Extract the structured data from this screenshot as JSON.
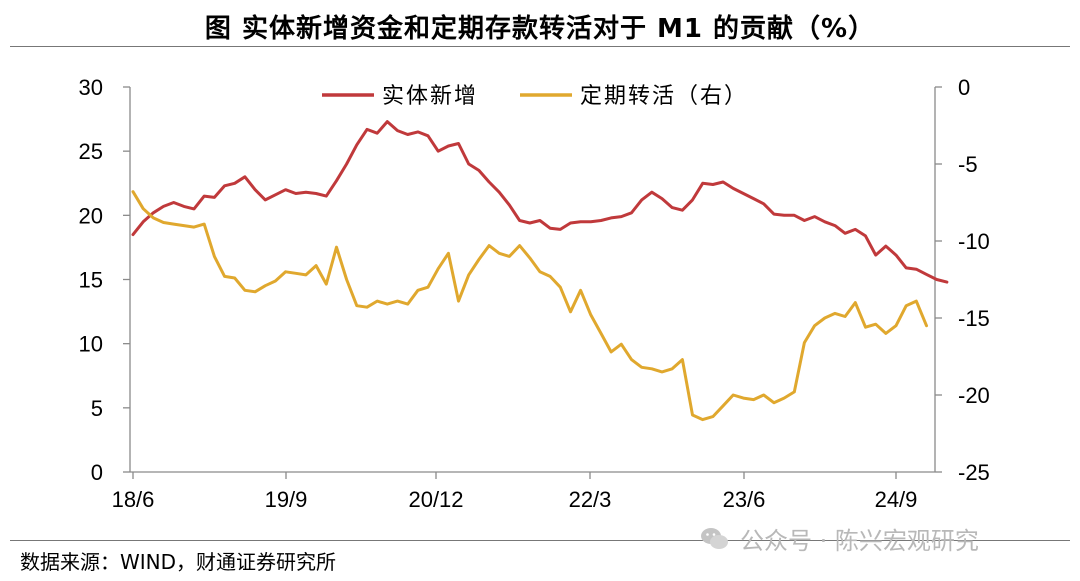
{
  "title": "图  实体新增资金和定期存款转活对于 M1 的贡献（%）",
  "source": "数据来源：WIND，财通证券研究所",
  "watermark": "公众号 · 陈兴宏观研究",
  "watermark_icon": "wechat-icon",
  "chart_data": {
    "type": "line",
    "title": "图  实体新增资金和定期存款转活对于 M1 的贡献（%）",
    "xlabel": "",
    "ylabel": "",
    "x_ticks": [
      "18/6",
      "19/9",
      "20/12",
      "22/3",
      "23/6",
      "24/9"
    ],
    "y_left": {
      "lim": [
        0,
        30
      ],
      "ticks": [
        0,
        5,
        10,
        15,
        20,
        25,
        30
      ]
    },
    "y_right": {
      "lim": [
        -25,
        0
      ],
      "ticks": [
        0,
        -5,
        -10,
        -15,
        -20,
        -25
      ]
    },
    "grid": false,
    "legend": "top-center",
    "x_start": "2018-06",
    "series": [
      {
        "name": "实体新增",
        "axis": "left",
        "color": "#c0393b",
        "values": [
          18.5,
          19.5,
          20.2,
          20.7,
          21.0,
          20.7,
          20.5,
          21.5,
          21.4,
          22.3,
          22.5,
          23.0,
          22.0,
          21.2,
          21.6,
          22.0,
          21.7,
          21.8,
          21.7,
          21.5,
          22.7,
          24.0,
          25.5,
          26.7,
          26.4,
          27.3,
          26.6,
          26.3,
          26.5,
          26.2,
          25.0,
          25.4,
          25.6,
          24.0,
          23.5,
          22.6,
          21.8,
          20.8,
          19.6,
          19.4,
          19.6,
          19.0,
          18.9,
          19.4,
          19.5,
          19.5,
          19.6,
          19.8,
          19.9,
          20.2,
          21.2,
          21.8,
          21.3,
          20.6,
          20.4,
          21.2,
          22.5,
          22.4,
          22.6,
          22.1,
          21.7,
          21.3,
          20.9,
          20.1,
          20.0,
          20.0,
          19.6,
          19.9,
          19.5,
          19.2,
          18.6,
          18.9,
          18.4,
          16.9,
          17.6,
          16.9,
          15.9,
          15.8,
          15.4,
          15.0,
          14.8
        ]
      },
      {
        "name": "定期转活（右）",
        "axis": "right",
        "color": "#e0a82e",
        "values": [
          -6.8,
          -7.9,
          -8.5,
          -8.8,
          -8.9,
          -9.0,
          -9.1,
          -8.9,
          -11.0,
          -12.3,
          -12.4,
          -13.2,
          -13.3,
          -12.9,
          -12.6,
          -12.0,
          -12.1,
          -12.2,
          -11.6,
          -12.8,
          -10.4,
          -12.5,
          -14.2,
          -14.3,
          -13.9,
          -14.1,
          -13.9,
          -14.1,
          -13.2,
          -13.0,
          -11.8,
          -10.8,
          -13.9,
          -12.2,
          -11.2,
          -10.3,
          -10.8,
          -11.0,
          -10.3,
          -11.1,
          -12.0,
          -12.3,
          -13.0,
          -14.6,
          -13.2,
          -14.8,
          -16.0,
          -17.2,
          -16.7,
          -17.7,
          -18.2,
          -18.3,
          -18.5,
          -18.3,
          -17.7,
          -21.3,
          -21.6,
          -21.4,
          -20.7,
          -20.0,
          -20.2,
          -20.3,
          -20.0,
          -20.5,
          -20.2,
          -19.8,
          -16.6,
          -15.5,
          -15.0,
          -14.7,
          -14.9,
          -14.0,
          -15.6,
          -15.4,
          -16.0,
          -15.5,
          -14.2,
          -13.9,
          -15.5
        ]
      }
    ]
  }
}
